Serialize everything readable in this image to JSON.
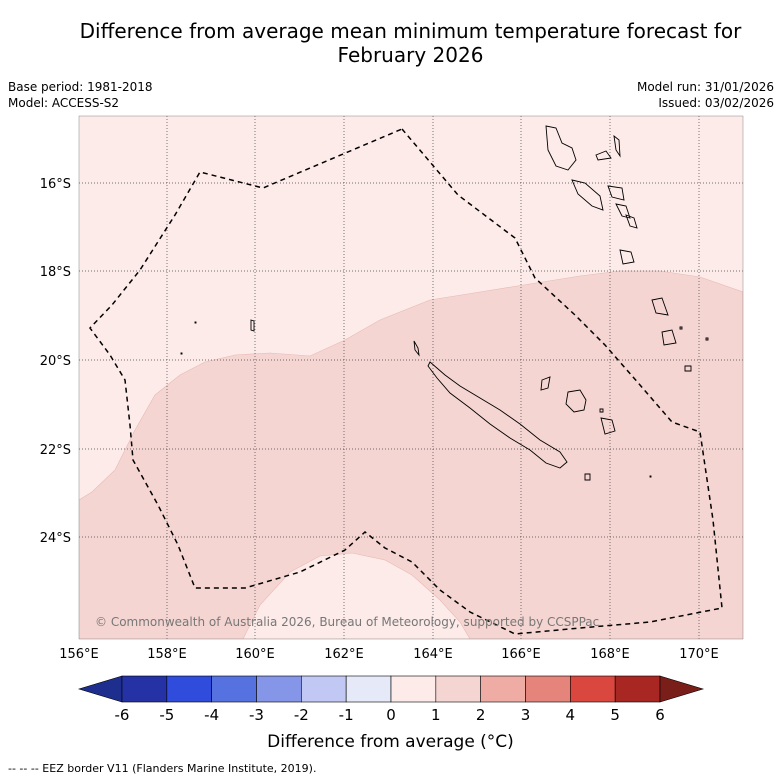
{
  "title": {
    "line1": "Difference from average mean minimum temperature forecast for",
    "line2": "February 2026"
  },
  "meta": {
    "base_period": "Base period: 1981-2018",
    "model": "Model: ACCESS-S2",
    "model_run": "Model run: 31/01/2026",
    "issued": "Issued: 03/02/2026"
  },
  "map": {
    "lon_ticks": [
      "156°E",
      "158°E",
      "160°E",
      "162°E",
      "164°E",
      "166°E",
      "168°E",
      "170°E"
    ],
    "lat_ticks": [
      "16°S",
      "18°S",
      "20°S",
      "22°S",
      "24°S"
    ],
    "copyright": "© Commonwealth of Australia 2026, Bureau of Meteorology, supported by CCSPPac"
  },
  "colorbar": {
    "ticks": [
      "-6",
      "-5",
      "-4",
      "-3",
      "-2",
      "-1",
      "0",
      "1",
      "2",
      "3",
      "4",
      "5",
      "6"
    ],
    "colors": [
      "#1e2e8e",
      "#2432a6",
      "#2f4cdc",
      "#5672e0",
      "#8595e8",
      "#c2c8f4",
      "#e6e9f8",
      "#fcebe8",
      "#f5d5d2",
      "#efaca5",
      "#e5847b",
      "#d9473f",
      "#a92722",
      "#7a1e1a"
    ],
    "label": "Difference from average (°C)"
  },
  "legend": {
    "eez_text": "-- EEZ border V11 (Flanders Marine Institute, 2019)."
  }
}
